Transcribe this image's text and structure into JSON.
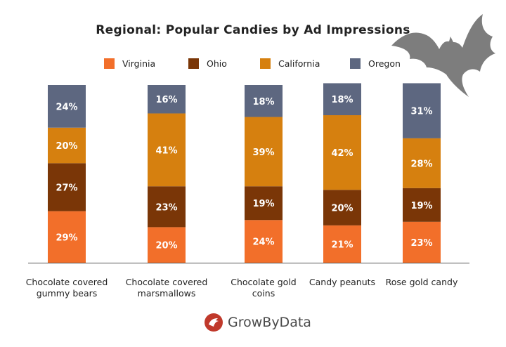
{
  "chart_data": {
    "type": "bar",
    "stacked": true,
    "title": "Regional: Popular Candies by Ad Impressions",
    "categories": [
      [
        "Chocolate covered",
        "gummy bears"
      ],
      [
        "Chocolate covered",
        "marsmallows"
      ],
      [
        "Chocolate gold",
        "coins"
      ],
      [
        "Candy peanuts"
      ],
      [
        "Rose gold candy"
      ]
    ],
    "series": [
      {
        "name": "Virginia",
        "color": "#f26f2a",
        "values": [
          29,
          20,
          24,
          21,
          23
        ]
      },
      {
        "name": "Ohio",
        "color": "#7a3607",
        "values": [
          27,
          23,
          19,
          20,
          19
        ]
      },
      {
        "name": "California",
        "color": "#d6800f",
        "values": [
          20,
          41,
          39,
          42,
          28
        ]
      },
      {
        "name": "Oregon",
        "color": "#5d6780",
        "values": [
          24,
          16,
          18,
          18,
          31
        ]
      }
    ],
    "ylim": [
      0,
      100
    ],
    "value_suffix": "%",
    "legend_position": "top",
    "grid": false
  },
  "branding": {
    "logo_text": "GrowByData",
    "logo_color": "#c0392b",
    "decoration": "bat-icon"
  }
}
